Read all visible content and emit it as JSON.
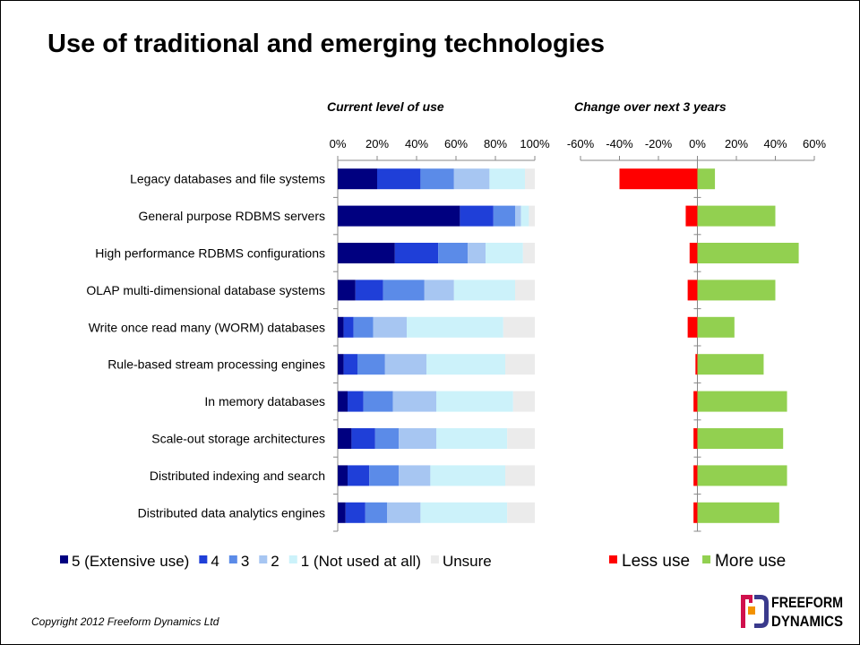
{
  "title": "Use of traditional and emerging technologies",
  "copyright": "Copyright 2012 Freeform Dynamics Ltd",
  "logo": {
    "line1": "FREEFORM",
    "line2": "DYNAMICS",
    "colors": [
      "#d0104c",
      "#3a3a8c",
      "#f39200"
    ]
  },
  "chart_data": [
    {
      "type": "bar",
      "stacked": true,
      "orientation": "horizontal",
      "title": "Current level of use",
      "xlim": [
        0,
        100
      ],
      "xticks": [
        "0%",
        "20%",
        "40%",
        "60%",
        "80%",
        "100%"
      ],
      "grid": false,
      "legend_position": "bottom",
      "categories": [
        "Legacy databases and file systems",
        "General purpose RDBMS servers",
        "High performance RDBMS configurations",
        "OLAP multi-dimensional database systems",
        "Write once read many (WORM) databases",
        "Rule-based stream processing engines",
        "In memory databases",
        "Scale-out storage architectures",
        "Distributed indexing and search",
        "Distributed data analytics engines"
      ],
      "series": [
        {
          "name": "5 (Extensive use)",
          "color": "#000080",
          "values": [
            20,
            62,
            29,
            9,
            3,
            3,
            5,
            7,
            5,
            4
          ]
        },
        {
          "name": "4",
          "color": "#1f3fd8",
          "values": [
            22,
            17,
            22,
            14,
            5,
            7,
            8,
            12,
            11,
            10
          ]
        },
        {
          "name": "3",
          "color": "#5b8be8",
          "values": [
            17,
            11,
            15,
            21,
            10,
            14,
            15,
            12,
            15,
            11
          ]
        },
        {
          "name": "2",
          "color": "#a7c6f2",
          "values": [
            18,
            3,
            9,
            15,
            17,
            21,
            22,
            19,
            16,
            17
          ]
        },
        {
          "name": "1 (Not used at all)",
          "color": "#ccf2fa",
          "values": [
            18,
            4,
            19,
            31,
            49,
            40,
            39,
            36,
            38,
            44
          ]
        },
        {
          "name": "Unsure",
          "color": "#ebebeb",
          "values": [
            5,
            3,
            6,
            10,
            16,
            15,
            11,
            14,
            15,
            14
          ]
        }
      ]
    },
    {
      "type": "bar",
      "orientation": "horizontal",
      "diverging": true,
      "title": "Change over next 3 years",
      "xlim": [
        -60,
        60
      ],
      "xticks": [
        "-60%",
        "-40%",
        "-20%",
        "0%",
        "20%",
        "40%",
        "60%"
      ],
      "grid": false,
      "legend_position": "bottom",
      "categories": [
        "Legacy databases and file systems",
        "General purpose RDBMS servers",
        "High performance RDBMS configurations",
        "OLAP multi-dimensional database systems",
        "Write once read many (WORM) databases",
        "Rule-based stream processing engines",
        "In memory databases",
        "Scale-out storage architectures",
        "Distributed indexing and search",
        "Distributed data analytics engines"
      ],
      "series": [
        {
          "name": "Less use",
          "color": "#ff0000",
          "values": [
            -40,
            -6,
            -4,
            -5,
            -5,
            -1,
            -2,
            -2,
            -2,
            -2
          ]
        },
        {
          "name": "More use",
          "color": "#92d050",
          "values": [
            9,
            40,
            52,
            40,
            19,
            34,
            46,
            44,
            46,
            42
          ]
        }
      ]
    }
  ]
}
